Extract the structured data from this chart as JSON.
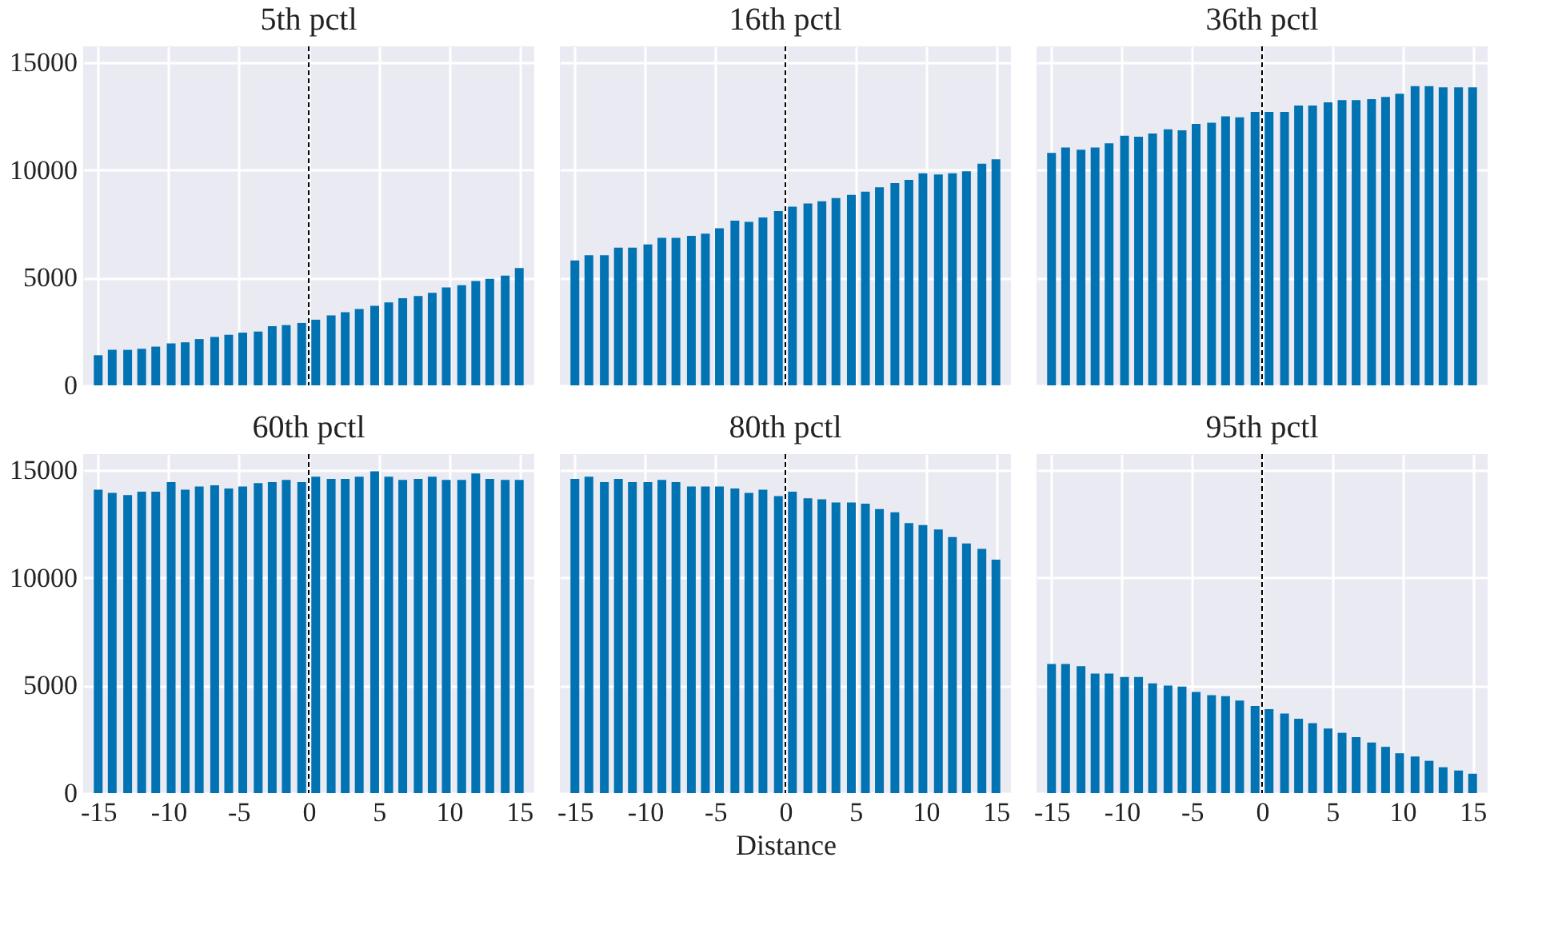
{
  "chart_data": [
    {
      "type": "bar",
      "title": "5th pctl",
      "color": "#0173b2",
      "xlim": [
        -15.5,
        15.5
      ],
      "xticks": [
        -15,
        -10,
        -5,
        0,
        5,
        10,
        15
      ],
      "ylim": [
        0,
        15750
      ],
      "yticks": [
        0,
        5000,
        10000,
        15000
      ],
      "grid": true,
      "tick_labels": "y",
      "ref_lines": [
        {
          "axis": "x",
          "value": 0,
          "color": "#000000",
          "line_style": "dashed"
        }
      ],
      "x": [
        -15.0,
        -14.0,
        -12.9,
        -11.9,
        -10.9,
        -9.8,
        -8.8,
        -7.8,
        -6.7,
        -5.7,
        -4.7,
        -3.6,
        -2.6,
        -1.6,
        -0.5,
        0.5,
        1.6,
        2.6,
        3.6,
        4.7,
        5.7,
        6.7,
        7.8,
        8.8,
        9.8,
        10.9,
        11.9,
        12.9,
        14.0,
        15.0
      ],
      "values": [
        1400,
        1650,
        1650,
        1700,
        1800,
        1950,
        2000,
        2150,
        2250,
        2350,
        2450,
        2500,
        2750,
        2800,
        2900,
        3050,
        3250,
        3400,
        3550,
        3700,
        3850,
        4050,
        4150,
        4300,
        4550,
        4650,
        4850,
        4950,
        5100,
        5450
      ]
    },
    {
      "type": "bar",
      "title": "16th pctl",
      "color": "#0173b2",
      "xlim": [
        -15.5,
        15.5
      ],
      "xticks": [
        -15,
        -10,
        -5,
        0,
        5,
        10,
        15
      ],
      "ylim": [
        0,
        15750
      ],
      "yticks": [
        0,
        5000,
        10000,
        15000
      ],
      "grid": true,
      "tick_labels": false,
      "ref_lines": [
        {
          "axis": "x",
          "value": 0,
          "color": "#000000",
          "line_style": "dashed"
        }
      ],
      "x": [
        -15.0,
        -14.0,
        -12.9,
        -11.9,
        -10.9,
        -9.8,
        -8.8,
        -7.8,
        -6.7,
        -5.7,
        -4.7,
        -3.6,
        -2.6,
        -1.6,
        -0.5,
        0.5,
        1.6,
        2.6,
        3.6,
        4.7,
        5.7,
        6.7,
        7.8,
        8.8,
        9.8,
        10.9,
        11.9,
        12.9,
        14.0,
        15.0
      ],
      "values": [
        5800,
        6050,
        6050,
        6400,
        6400,
        6550,
        6850,
        6850,
        6950,
        7050,
        7300,
        7650,
        7600,
        7800,
        8100,
        8300,
        8450,
        8550,
        8700,
        8850,
        9000,
        9200,
        9400,
        9550,
        9850,
        9800,
        9850,
        9950,
        10300,
        10500
      ]
    },
    {
      "type": "bar",
      "title": "36th pctl",
      "color": "#0173b2",
      "xlim": [
        -15.5,
        15.5
      ],
      "xticks": [
        -15,
        -10,
        -5,
        0,
        5,
        10,
        15
      ],
      "ylim": [
        0,
        15750
      ],
      "yticks": [
        0,
        5000,
        10000,
        15000
      ],
      "grid": true,
      "tick_labels": false,
      "ref_lines": [
        {
          "axis": "x",
          "value": 0,
          "color": "#000000",
          "line_style": "dashed"
        }
      ],
      "x": [
        -15.0,
        -14.0,
        -12.9,
        -11.9,
        -10.9,
        -9.8,
        -8.8,
        -7.8,
        -6.7,
        -5.7,
        -4.7,
        -3.6,
        -2.6,
        -1.6,
        -0.5,
        0.5,
        1.6,
        2.6,
        3.6,
        4.7,
        5.7,
        6.7,
        7.8,
        8.8,
        9.8,
        10.9,
        11.9,
        12.9,
        14.0,
        15.0
      ],
      "values": [
        10800,
        11050,
        10950,
        11050,
        11250,
        11600,
        11550,
        11700,
        11900,
        11850,
        12150,
        12200,
        12500,
        12450,
        12700,
        12700,
        12700,
        13000,
        13000,
        13150,
        13250,
        13250,
        13300,
        13400,
        13550,
        13900,
        13900,
        13850,
        13850,
        13850
      ]
    },
    {
      "type": "bar",
      "title": "60th pctl",
      "color": "#0173b2",
      "xlim": [
        -15.5,
        15.5
      ],
      "xticks": [
        -15,
        -10,
        -5,
        0,
        5,
        10,
        15
      ],
      "ylim": [
        0,
        15750
      ],
      "yticks": [
        0,
        5000,
        10000,
        15000
      ],
      "grid": true,
      "ref_lines": [
        {
          "axis": "x",
          "value": 0,
          "color": "#000000",
          "line_style": "dashed"
        }
      ],
      "x": [
        -15.0,
        -14.0,
        -12.9,
        -11.9,
        -10.9,
        -9.8,
        -8.8,
        -7.8,
        -6.7,
        -5.7,
        -4.7,
        -3.6,
        -2.6,
        -1.6,
        -0.5,
        0.5,
        1.6,
        2.6,
        3.6,
        4.7,
        5.7,
        6.7,
        7.8,
        8.8,
        9.8,
        10.9,
        11.9,
        12.9,
        14.0,
        15.0
      ],
      "values": [
        14100,
        13950,
        13850,
        14000,
        14000,
        14450,
        14100,
        14250,
        14300,
        14150,
        14250,
        14400,
        14450,
        14550,
        14450,
        14700,
        14600,
        14600,
        14700,
        14950,
        14700,
        14550,
        14600,
        14700,
        14550,
        14550,
        14850,
        14600,
        14550,
        14550
      ]
    },
    {
      "type": "bar",
      "title": "80th pctl",
      "xlabel": "Distance",
      "color": "#0173b2",
      "xlim": [
        -15.5,
        15.5
      ],
      "xticks": [
        -15,
        -10,
        -5,
        0,
        5,
        10,
        15
      ],
      "ylim": [
        0,
        15750
      ],
      "yticks": [
        0,
        5000,
        10000,
        15000
      ],
      "grid": true,
      "tick_labels": "x",
      "ref_lines": [
        {
          "axis": "x",
          "value": 0,
          "color": "#000000",
          "line_style": "dashed"
        }
      ],
      "x": [
        -15.0,
        -14.0,
        -12.9,
        -11.9,
        -10.9,
        -9.8,
        -8.8,
        -7.8,
        -6.7,
        -5.7,
        -4.7,
        -3.6,
        -2.6,
        -1.6,
        -0.5,
        0.5,
        1.6,
        2.6,
        3.6,
        4.7,
        5.7,
        6.7,
        7.8,
        8.8,
        9.8,
        10.9,
        11.9,
        12.9,
        14.0,
        15.0
      ],
      "values": [
        14600,
        14700,
        14450,
        14600,
        14450,
        14450,
        14550,
        14450,
        14250,
        14250,
        14250,
        14150,
        13950,
        14100,
        13800,
        14000,
        13700,
        13650,
        13500,
        13500,
        13450,
        13200,
        13050,
        12550,
        12450,
        12250,
        11900,
        11600,
        11350,
        10850
      ]
    },
    {
      "type": "bar",
      "title": "95th pctl",
      "color": "#0173b2",
      "xlim": [
        -15.5,
        15.5
      ],
      "xticks": [
        -15,
        -10,
        -5,
        0,
        5,
        10,
        15
      ],
      "ylim": [
        0,
        15750
      ],
      "yticks": [
        0,
        5000,
        10000,
        15000
      ],
      "grid": true,
      "tick_labels": "x",
      "ref_lines": [
        {
          "axis": "x",
          "value": 0,
          "color": "#000000",
          "line_style": "dashed"
        }
      ],
      "x": [
        -15.0,
        -14.0,
        -12.9,
        -11.9,
        -10.9,
        -9.8,
        -8.8,
        -7.8,
        -6.7,
        -5.7,
        -4.7,
        -3.6,
        -2.6,
        -1.6,
        -0.5,
        0.5,
        1.6,
        2.6,
        3.6,
        4.7,
        5.7,
        6.7,
        7.8,
        8.8,
        9.8,
        10.9,
        11.9,
        12.9,
        14.0,
        15.0
      ],
      "values": [
        6000,
        6000,
        5900,
        5550,
        5550,
        5400,
        5400,
        5100,
        5000,
        4950,
        4700,
        4550,
        4500,
        4300,
        4050,
        3900,
        3700,
        3450,
        3250,
        3000,
        2800,
        2600,
        2350,
        2150,
        1850,
        1700,
        1500,
        1200,
        1050,
        900
      ]
    }
  ]
}
